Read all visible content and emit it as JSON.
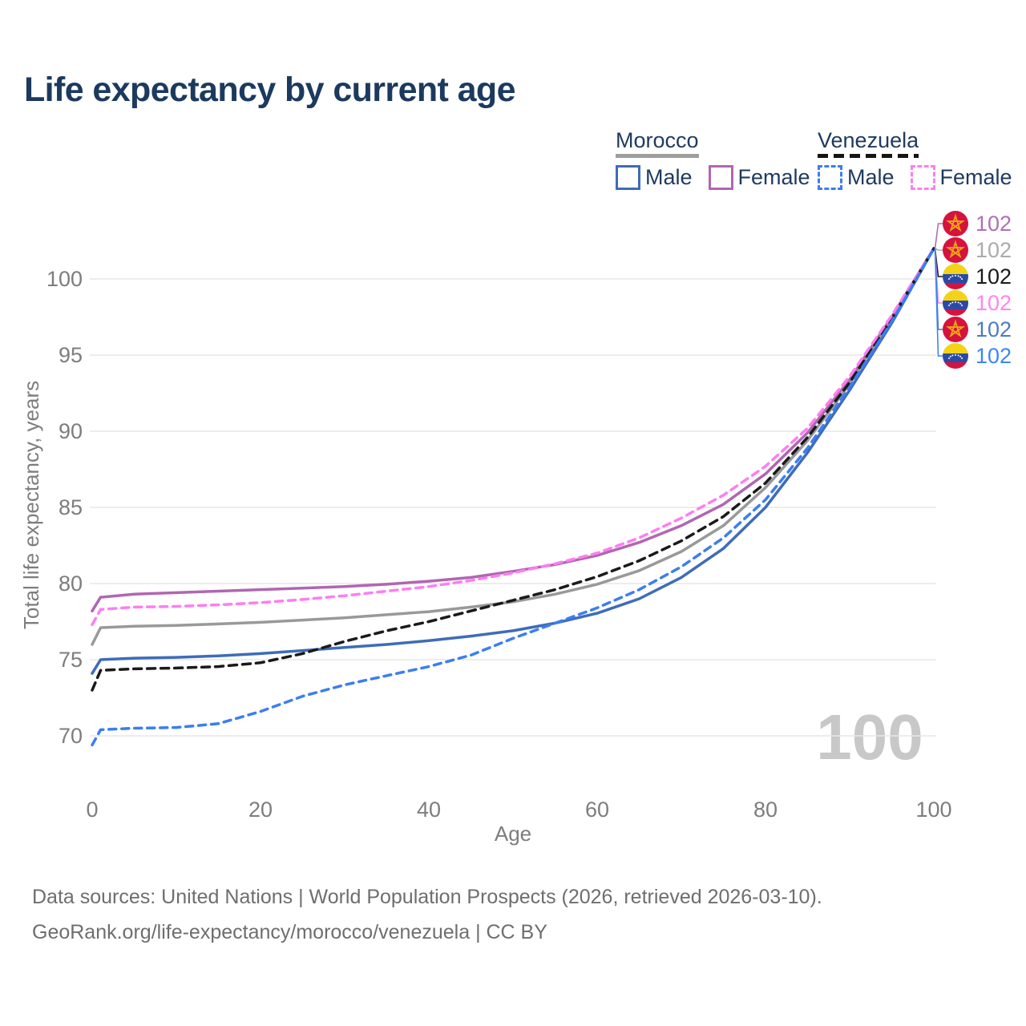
{
  "title": "Life expectancy by current age",
  "legend": {
    "groups": [
      {
        "country": "Morocco",
        "line_style": "solid",
        "rule_color": "#9e9e9e",
        "items": [
          {
            "label": "Male",
            "color": "#3e6cb8"
          },
          {
            "label": "Female",
            "color": "#b166b1"
          }
        ]
      },
      {
        "country": "Venezuela",
        "line_style": "dashed",
        "rule_color": "#151515",
        "items": [
          {
            "label": "Male",
            "color": "#3b7ef0"
          },
          {
            "label": "Female",
            "color": "#ff7df2"
          }
        ]
      }
    ]
  },
  "chart_data": {
    "type": "line",
    "title": "Life expectancy by current age",
    "xlabel": "Age",
    "ylabel": "Total life expectancy, years",
    "xlim": [
      0,
      100
    ],
    "ylim": [
      68,
      103.5
    ],
    "xticks": [
      0,
      20,
      40,
      60,
      80,
      100
    ],
    "yticks": [
      70,
      75,
      80,
      85,
      90,
      95,
      100
    ],
    "grid": true,
    "watermark": "100",
    "x": [
      0,
      1,
      5,
      10,
      15,
      20,
      25,
      30,
      35,
      40,
      45,
      50,
      55,
      60,
      65,
      70,
      75,
      80,
      85,
      90,
      95,
      100
    ],
    "series": [
      {
        "key": "morocco-all",
        "name": "Morocco",
        "country": "Morocco",
        "color": "#999999",
        "dash": null,
        "values": [
          76.0,
          77.1,
          77.2,
          77.25,
          77.35,
          77.45,
          77.6,
          77.75,
          77.95,
          78.15,
          78.45,
          78.8,
          79.3,
          79.95,
          80.85,
          82.1,
          83.8,
          86.3,
          89.4,
          93.1,
          97.4,
          102
        ]
      },
      {
        "key": "morocco-female",
        "name": "Morocco Female",
        "country": "Morocco",
        "color": "#b166b1",
        "dash": null,
        "values": [
          78.2,
          79.1,
          79.3,
          79.4,
          79.5,
          79.6,
          79.7,
          79.8,
          79.95,
          80.15,
          80.4,
          80.8,
          81.25,
          81.85,
          82.7,
          83.8,
          85.2,
          87.2,
          89.9,
          93.4,
          97.5,
          102
        ]
      },
      {
        "key": "morocco-male",
        "name": "Morocco Male",
        "country": "Morocco",
        "color": "#3e6cb8",
        "dash": null,
        "values": [
          74.1,
          75.0,
          75.1,
          75.15,
          75.25,
          75.4,
          75.6,
          75.8,
          76.0,
          76.25,
          76.55,
          76.9,
          77.4,
          78.05,
          79.0,
          80.4,
          82.3,
          85.0,
          88.6,
          92.7,
          97.1,
          102
        ]
      },
      {
        "key": "venezuela-all",
        "name": "Venezuela",
        "country": "Venezuela",
        "color": "#1a1a1a",
        "dash": "10 7",
        "values": [
          73.0,
          74.3,
          74.4,
          74.45,
          74.55,
          74.8,
          75.4,
          76.2,
          76.9,
          77.5,
          78.2,
          78.9,
          79.6,
          80.45,
          81.5,
          82.8,
          84.4,
          86.6,
          89.6,
          93.2,
          97.4,
          102
        ]
      },
      {
        "key": "venezuela-female",
        "name": "Venezuela Female",
        "country": "Venezuela",
        "color": "#ff7df2",
        "dash": "9 7",
        "values": [
          77.3,
          78.3,
          78.45,
          78.5,
          78.6,
          78.75,
          78.95,
          79.2,
          79.5,
          79.8,
          80.2,
          80.7,
          81.3,
          82.0,
          83.0,
          84.3,
          85.8,
          87.7,
          90.2,
          93.6,
          97.6,
          102
        ]
      },
      {
        "key": "venezuela-male",
        "name": "Venezuela Male",
        "country": "Venezuela",
        "color": "#3b7ef0",
        "dash": "9 7",
        "values": [
          69.4,
          70.4,
          70.5,
          70.55,
          70.8,
          71.6,
          72.6,
          73.35,
          73.95,
          74.55,
          75.3,
          76.4,
          77.4,
          78.4,
          79.6,
          81.1,
          83.0,
          85.5,
          88.9,
          92.9,
          97.2,
          102
        ]
      }
    ]
  },
  "right_labels": [
    {
      "flag": "morocco",
      "series": "Morocco Female",
      "value": "102",
      "color": "#b06fb5"
    },
    {
      "flag": "morocco",
      "series": "Morocco",
      "value": "102",
      "color": "#ababab"
    },
    {
      "flag": "venezuela",
      "series": "Venezuela",
      "value": "102",
      "color": "#1a1a1a"
    },
    {
      "flag": "venezuela",
      "series": "Venezuela Female",
      "value": "102",
      "color": "#ff85f2"
    },
    {
      "flag": "morocco",
      "series": "Morocco Male",
      "value": "102",
      "color": "#4a7cc4"
    },
    {
      "flag": "venezuela",
      "series": "Venezuela Male",
      "value": "102",
      "color": "#3c86f4"
    }
  ],
  "flag_colors": {
    "morocco_red": "#d6123e",
    "morocco_star": "#eda617",
    "venezuela_yellow": "#f4d316",
    "venezuela_blue": "#2b4aa5",
    "venezuela_red": "#d6123e"
  },
  "footer": {
    "line1": "Data sources: United Nations | World Population Prospects (2026, retrieved 2026-03-10).",
    "line2": "GeoRank.org/life-expectancy/morocco/venezuela | CC BY"
  }
}
